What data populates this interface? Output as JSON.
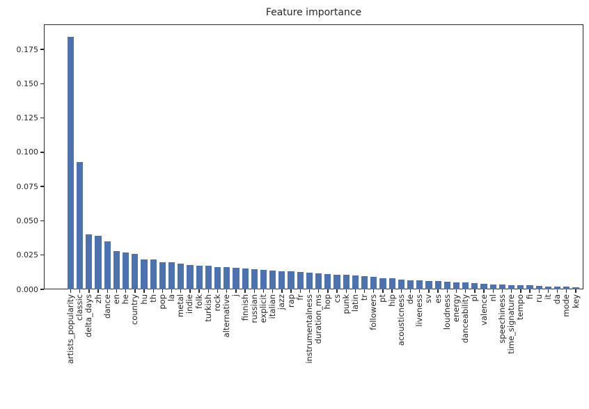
{
  "chart_data": {
    "type": "bar",
    "title": "Feature importance",
    "xlabel": "",
    "ylabel": "",
    "grid": false,
    "legend_position": "none",
    "bar_color": "#4c72b0",
    "axis_color": "#262626",
    "text_color": "#262626",
    "ylim": [
      0,
      0.1933
    ],
    "ytick_values": [
      0,
      0.025,
      0.05,
      0.075,
      0.1,
      0.125,
      0.15,
      0.175
    ],
    "ytick_labels": [
      "0.000",
      "0.025",
      "0.050",
      "0.075",
      "0.100",
      "0.125",
      "0.150",
      "0.175"
    ],
    "categories": [
      "artists_popularity",
      "classic",
      "delta_days",
      "zh",
      "dance",
      "en",
      "he",
      "country",
      "hu",
      "th",
      "pop",
      "la",
      "metal",
      "indie",
      "folk",
      "turkish",
      "rock",
      "alternative",
      "j",
      "finnish",
      "russian",
      "explicit",
      "italian",
      "jazz",
      "rap",
      "fr",
      "instrumentalness",
      "duration_ms",
      "hop",
      "cs",
      "punk",
      "latin",
      "tr",
      "followers",
      "pt",
      "hip",
      "acousticness",
      "de",
      "liveness",
      "sv",
      "es",
      "loudness",
      "energy",
      "danceability",
      "pl",
      "valence",
      "nl",
      "speechiness",
      "time_signature",
      "tempo",
      "fi",
      "ru",
      "it",
      "da",
      "mode",
      "key"
    ],
    "values": [
      0.184,
      0.093,
      0.04,
      0.039,
      0.035,
      0.028,
      0.027,
      0.026,
      0.022,
      0.022,
      0.02,
      0.02,
      0.019,
      0.018,
      0.017,
      0.017,
      0.016,
      0.016,
      0.0155,
      0.015,
      0.0145,
      0.014,
      0.0135,
      0.013,
      0.013,
      0.0125,
      0.012,
      0.0115,
      0.011,
      0.0105,
      0.0105,
      0.01,
      0.0095,
      0.009,
      0.008,
      0.008,
      0.007,
      0.0065,
      0.0065,
      0.006,
      0.006,
      0.0055,
      0.005,
      0.005,
      0.0045,
      0.004,
      0.0035,
      0.0035,
      0.003,
      0.003,
      0.0028,
      0.0025,
      0.0022,
      0.002,
      0.002,
      0.0015
    ]
  }
}
